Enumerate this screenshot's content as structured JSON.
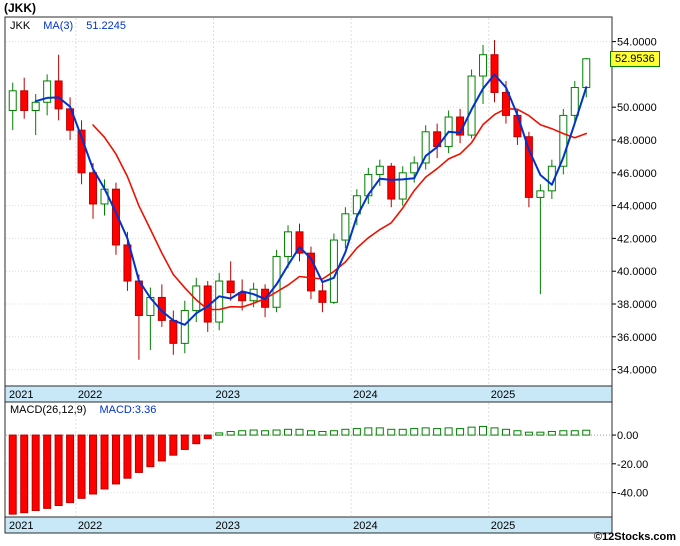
{
  "header": {
    "title": "(JKK)"
  },
  "main_panel": {
    "legend": {
      "symbol": "JKK",
      "ma_label": "MA(3)",
      "ma_value": "51.2245"
    },
    "last_price": "52.9536"
  },
  "macd_panel": {
    "legend": {
      "label": "MACD(26,12,9)",
      "value_label": "MACD:3.36"
    }
  },
  "footer": {
    "watermark": "©12Stocks.com"
  },
  "colors": {
    "up": "#008000",
    "up_fill": "#ffffff",
    "down": "#bb0000",
    "down_fill": "#ff0000",
    "ma_fast_blue": "#0033cc",
    "ma_slow_red": "#ee1100",
    "grid": "#dcdcdc",
    "zero_line": "#999999",
    "axis_text": "#000000",
    "strip_bg": "#c9e8f7",
    "panel_border": "#2b2b2b",
    "badge_bg": "#ffff33",
    "badge_border": "#008000",
    "legend_blue": "#0033cc"
  },
  "chart_data": [
    {
      "type": "candlestick",
      "title": "(JKK)",
      "frequency": "monthly",
      "last_price": 52.9536,
      "ylim": [
        33.0,
        55.5
      ],
      "dates": [
        "2021-07",
        "2021-08",
        "2021-09",
        "2021-10",
        "2021-11",
        "2021-12",
        "2022-01",
        "2022-02",
        "2022-03",
        "2022-04",
        "2022-05",
        "2022-06",
        "2022-07",
        "2022-08",
        "2022-09",
        "2022-10",
        "2022-11",
        "2022-12",
        "2023-01",
        "2023-02",
        "2023-03",
        "2023-04",
        "2023-05",
        "2023-06",
        "2023-07",
        "2023-08",
        "2023-09",
        "2023-10",
        "2023-11",
        "2023-12",
        "2024-01",
        "2024-02",
        "2024-03",
        "2024-04",
        "2024-05",
        "2024-06",
        "2024-07",
        "2024-08",
        "2024-09",
        "2024-10",
        "2024-11",
        "2024-12",
        "2025-01",
        "2025-02",
        "2025-03",
        "2025-04",
        "2025-05",
        "2025-06",
        "2025-07",
        "2025-08",
        "2025-09"
      ],
      "ohlc": [
        [
          49.8,
          51.5,
          48.6,
          51.0
        ],
        [
          51.0,
          51.8,
          49.3,
          49.8
        ],
        [
          49.8,
          50.8,
          48.3,
          50.3
        ],
        [
          50.3,
          52.0,
          49.5,
          51.6
        ],
        [
          51.6,
          53.2,
          49.2,
          49.9
        ],
        [
          49.9,
          50.6,
          48.0,
          48.6
        ],
        [
          48.6,
          49.2,
          45.3,
          46.0
        ],
        [
          46.0,
          46.6,
          43.2,
          44.1
        ],
        [
          44.1,
          45.6,
          43.4,
          45.0
        ],
        [
          45.0,
          45.4,
          41.0,
          41.6
        ],
        [
          41.6,
          42.4,
          38.8,
          39.4
        ],
        [
          39.4,
          39.8,
          34.6,
          37.3
        ],
        [
          37.3,
          39.0,
          35.2,
          38.4
        ],
        [
          38.4,
          39.2,
          36.6,
          37.0
        ],
        [
          37.0,
          37.6,
          34.9,
          35.6
        ],
        [
          35.6,
          38.2,
          35.0,
          37.6
        ],
        [
          37.6,
          39.6,
          36.9,
          39.1
        ],
        [
          39.1,
          39.4,
          36.3,
          36.9
        ],
        [
          36.9,
          39.9,
          36.4,
          39.4
        ],
        [
          39.4,
          40.6,
          38.2,
          38.7
        ],
        [
          38.7,
          39.5,
          37.6,
          38.2
        ],
        [
          38.2,
          39.3,
          37.8,
          38.9
        ],
        [
          38.9,
          39.2,
          37.2,
          37.8
        ],
        [
          37.8,
          41.3,
          37.5,
          40.9
        ],
        [
          40.9,
          42.8,
          40.2,
          42.4
        ],
        [
          42.4,
          42.9,
          40.6,
          41.1
        ],
        [
          41.1,
          41.5,
          38.3,
          38.8
        ],
        [
          38.8,
          39.3,
          37.5,
          38.1
        ],
        [
          38.1,
          42.3,
          38.0,
          41.9
        ],
        [
          41.9,
          43.9,
          41.4,
          43.5
        ],
        [
          43.5,
          45.0,
          42.8,
          44.6
        ],
        [
          44.6,
          46.3,
          44.1,
          45.9
        ],
        [
          45.9,
          46.8,
          45.2,
          46.4
        ],
        [
          46.4,
          46.6,
          43.9,
          44.4
        ],
        [
          44.4,
          46.4,
          44.0,
          46.0
        ],
        [
          46.0,
          47.0,
          45.4,
          46.6
        ],
        [
          46.6,
          48.9,
          46.2,
          48.5
        ],
        [
          48.5,
          49.0,
          46.9,
          47.6
        ],
        [
          47.6,
          49.8,
          47.2,
          49.4
        ],
        [
          49.4,
          49.9,
          47.8,
          48.3
        ],
        [
          48.3,
          52.3,
          48.1,
          51.9
        ],
        [
          51.9,
          53.8,
          50.2,
          53.2
        ],
        [
          53.2,
          54.1,
          50.3,
          50.9
        ],
        [
          50.9,
          51.6,
          49.0,
          49.5
        ],
        [
          49.5,
          49.9,
          47.7,
          48.2
        ],
        [
          48.2,
          48.5,
          43.9,
          44.5
        ],
        [
          44.5,
          45.3,
          38.6,
          44.9
        ],
        [
          44.9,
          46.8,
          44.4,
          46.4
        ],
        [
          46.4,
          49.9,
          45.9,
          49.5
        ],
        [
          49.5,
          51.6,
          49.0,
          51.2
        ],
        [
          51.2,
          53.0,
          50.6,
          52.9536
        ]
      ],
      "y_ticks": [
        {
          "label": "54.0000",
          "value": 54.0
        },
        {
          "label": "50.0000",
          "value": 50.0
        },
        {
          "label": "48.0000",
          "value": 48.0
        },
        {
          "label": "46.0000",
          "value": 46.0
        },
        {
          "label": "44.0000",
          "value": 44.0
        },
        {
          "label": "42.0000",
          "value": 42.0
        },
        {
          "label": "40.0000",
          "value": 40.0
        },
        {
          "label": "38.0000",
          "value": 38.0
        },
        {
          "label": "36.0000",
          "value": 36.0
        },
        {
          "label": "34.0000",
          "value": 34.0
        }
      ],
      "x_ticks": [
        {
          "label": "2021",
          "index": 0
        },
        {
          "label": "2022",
          "index": 6
        },
        {
          "label": "2023",
          "index": 18
        },
        {
          "label": "2024",
          "index": 30
        },
        {
          "label": "2025",
          "index": 42
        }
      ],
      "overlays": [
        {
          "name": "MA(3)",
          "type": "sma",
          "period": 3,
          "color_key": "ma_fast_blue",
          "last_value": 51.2245
        },
        {
          "name": "MA(8)",
          "type": "sma",
          "period": 8,
          "color_key": "ma_slow_red"
        }
      ]
    },
    {
      "type": "bar",
      "title": "MACD(26,12,9)",
      "last_value": 3.36,
      "ylim": [
        -57,
        23
      ],
      "values": [
        -55,
        -54,
        -52.5,
        -51,
        -49,
        -47,
        -44,
        -41,
        -37.5,
        -34,
        -30,
        -26,
        -22,
        -18,
        -14,
        -10,
        -6,
        -2.5,
        1.5,
        2.5,
        3,
        3.5,
        3,
        3.5,
        4,
        4,
        3,
        2.5,
        3,
        4,
        4.5,
        5,
        5,
        4,
        4,
        4.5,
        5,
        4.5,
        5,
        4.5,
        5.5,
        6,
        5,
        4,
        3,
        2,
        2,
        2.5,
        3,
        3,
        3.36
      ],
      "y_ticks": [
        {
          "label": "0.00",
          "value": 0
        },
        {
          "label": "-20.00",
          "value": -20
        },
        {
          "label": "-40.00",
          "value": -40
        }
      ]
    }
  ]
}
